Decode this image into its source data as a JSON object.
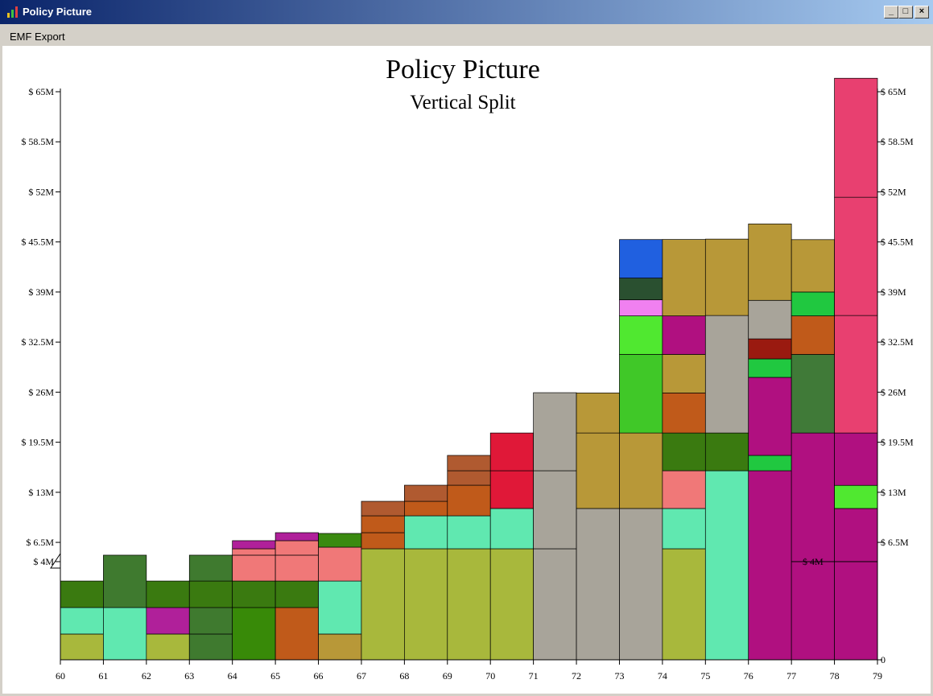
{
  "window": {
    "title": "Policy Picture"
  },
  "menu": [
    "EMF Export"
  ],
  "chart_data": {
    "type": "stacked-block",
    "title": "Policy Picture",
    "subtitle": "Vertical Split",
    "annotation": "$ 4M",
    "xlim": [
      60,
      79
    ],
    "xticks": [
      60,
      61,
      62,
      63,
      64,
      65,
      66,
      67,
      68,
      69,
      70,
      71,
      72,
      73,
      74,
      75,
      76,
      77,
      78,
      79
    ],
    "ylim": [
      0,
      65
    ],
    "y_split": 4,
    "yticks": [
      {
        "value": 65,
        "label": "$ 65M"
      },
      {
        "value": 58.5,
        "label": "$ 58.5M"
      },
      {
        "value": 52,
        "label": "$ 52M"
      },
      {
        "value": 45.5,
        "label": "$ 45.5M"
      },
      {
        "value": 39,
        "label": "$ 39M"
      },
      {
        "value": 32.5,
        "label": "$ 32.5M"
      },
      {
        "value": 26,
        "label": "$ 26M"
      },
      {
        "value": 19.5,
        "label": "$ 19.5M"
      },
      {
        "value": 13,
        "label": "$ 13M"
      },
      {
        "value": 6.5,
        "label": "$ 6.5M"
      },
      {
        "value": 4,
        "label": "$ 4M"
      }
    ],
    "y2lim": [
      0,
      65
    ],
    "y2ticks": [
      {
        "value": 65,
        "label": "$ 65M"
      },
      {
        "value": 58.5,
        "label": "$ 58.5M"
      },
      {
        "value": 52,
        "label": "$ 52M"
      },
      {
        "value": 45.5,
        "label": "$ 45.5M"
      },
      {
        "value": 39,
        "label": "$ 39M"
      },
      {
        "value": 32.5,
        "label": "$ 32.5M"
      },
      {
        "value": 26,
        "label": "$ 26M"
      },
      {
        "value": 19.5,
        "label": "$ 19.5M"
      },
      {
        "value": 13,
        "label": "$ 13M"
      },
      {
        "value": 6.5,
        "label": "$ 6.5M"
      },
      0
    ],
    "columns": [
      {
        "x": 60,
        "segments": [
          {
            "value": 1.05,
            "color": "#a8b83c"
          },
          {
            "value": 1.08,
            "color": "#60e8b0"
          },
          {
            "value": 1.08,
            "color": "#3a7a10"
          }
        ]
      },
      {
        "x": 61,
        "segments": [
          {
            "value": 2.13,
            "color": "#60e8b0"
          },
          {
            "value": 2.71,
            "color": "#3f7a2f"
          }
        ]
      },
      {
        "x": 62,
        "segments": [
          {
            "value": 1.05,
            "color": "#a8b83c"
          },
          {
            "value": 1.08,
            "color": "#b0209a"
          },
          {
            "value": 1.08,
            "color": "#3a7a10"
          }
        ]
      },
      {
        "x": 63,
        "segments": [
          {
            "value": 1.05,
            "color": "#3f7a2f"
          },
          {
            "value": 1.08,
            "color": "#3f7a2f"
          },
          {
            "value": 1.08,
            "color": "#3a7a10"
          },
          {
            "value": 1.63,
            "color": "#3f7a2f"
          }
        ]
      },
      {
        "x": 64,
        "segments": [
          {
            "value": 2.13,
            "color": "#388a08"
          },
          {
            "value": 1.08,
            "color": "#3a7a10"
          },
          {
            "value": 1.63,
            "color": "#f07878"
          },
          {
            "value": 0.83,
            "color": "#f07878"
          },
          {
            "value": 1.05,
            "color": "#b0209a"
          }
        ]
      },
      {
        "x": 65,
        "segments": [
          {
            "value": 2.13,
            "color": "#c05a1a"
          },
          {
            "value": 1.08,
            "color": "#3a7a10"
          },
          {
            "value": 1.63,
            "color": "#f07878"
          },
          {
            "value": 1.88,
            "color": "#f07878"
          },
          {
            "value": 1.04,
            "color": "#b0209a"
          }
        ]
      },
      {
        "x": 66,
        "segments": [
          {
            "value": 1.05,
            "color": "#b89838"
          },
          {
            "value": 2.16,
            "color": "#60e8b0"
          },
          {
            "value": 2.67,
            "color": "#f07878"
          },
          {
            "value": 1.78,
            "color": "#3a8a10"
          }
        ]
      },
      {
        "x": 67,
        "segments": [
          {
            "value": 5.67,
            "color": "#a8b83c"
          },
          {
            "value": 2.09,
            "color": "#c05a1a"
          },
          {
            "value": 2.19,
            "color": "#c05a1a"
          },
          {
            "value": 1.88,
            "color": "#b05a30"
          }
        ]
      },
      {
        "x": 68,
        "segments": [
          {
            "value": 5.67,
            "color": "#a8b83c"
          },
          {
            "value": 4.28,
            "color": "#60e8b0"
          },
          {
            "value": 1.88,
            "color": "#c05a1a"
          },
          {
            "value": 2.09,
            "color": "#b05a30"
          }
        ]
      },
      {
        "x": 69,
        "segments": [
          {
            "value": 5.67,
            "color": "#a8b83c"
          },
          {
            "value": 4.28,
            "color": "#60e8b0"
          },
          {
            "value": 3.97,
            "color": "#c05a1a"
          },
          {
            "value": 1.88,
            "color": "#b05a30"
          },
          {
            "value": 1.99,
            "color": "#b05a30"
          }
        ]
      },
      {
        "x": 70,
        "segments": [
          {
            "value": 5.67,
            "color": "#a8b83c"
          },
          {
            "value": 5.23,
            "color": "#60e8b0"
          },
          {
            "value": 4.9,
            "color": "#e01838"
          },
          {
            "value": 4.9,
            "color": "#e01838"
          }
        ]
      },
      {
        "x": 71,
        "segments": [
          {
            "value": 5.67,
            "color": "#a8a49a"
          },
          {
            "value": 10.13,
            "color": "#a8a49a"
          },
          {
            "value": 10.13,
            "color": "#a8a49a"
          }
        ]
      },
      {
        "x": 72,
        "segments": [
          {
            "value": 10.9,
            "color": "#a8a49a"
          },
          {
            "value": 9.8,
            "color": "#b89838"
          },
          {
            "value": 5.2,
            "color": "#b89838"
          }
        ]
      },
      {
        "x": 73,
        "segments": [
          {
            "value": 10.9,
            "color": "#a8a49a"
          },
          {
            "value": 9.8,
            "color": "#b89838"
          },
          {
            "value": 10.2,
            "color": "#40c828"
          },
          {
            "value": 5.0,
            "color": "#50e830"
          },
          {
            "value": 2.09,
            "color": "#f080f0"
          },
          {
            "value": 2.82,
            "color": "#2a5030"
          },
          {
            "value": 5.0,
            "color": "#2060e0"
          }
        ]
      },
      {
        "x": 74,
        "segments": [
          {
            "value": 5.67,
            "color": "#a8b83c"
          },
          {
            "value": 5.23,
            "color": "#60e8b0"
          },
          {
            "value": 4.9,
            "color": "#f07878"
          },
          {
            "value": 4.9,
            "color": "#3a7a10"
          },
          {
            "value": 5.2,
            "color": "#c05a1a"
          },
          {
            "value": 5.0,
            "color": "#b89838"
          },
          {
            "value": 5.0,
            "color": "#b01080"
          },
          {
            "value": 9.92,
            "color": "#b89838"
          }
        ]
      },
      {
        "x": 75,
        "segments": [
          {
            "value": 15.8,
            "color": "#60e8b0"
          },
          {
            "value": 4.9,
            "color": "#3a7a10"
          },
          {
            "value": 15.25,
            "color": "#a8a49a"
          },
          {
            "value": 9.92,
            "color": "#b89838"
          }
        ]
      },
      {
        "x": 76,
        "segments": [
          {
            "value": 15.8,
            "color": "#b01080"
          },
          {
            "value": 1.99,
            "color": "#20c840"
          },
          {
            "value": 10.13,
            "color": "#b01080"
          },
          {
            "value": 2.4,
            "color": "#20c840"
          },
          {
            "value": 2.6,
            "color": "#9a1a10"
          },
          {
            "value": 5.0,
            "color": "#a8a49a"
          },
          {
            "value": 9.92,
            "color": "#b89838"
          }
        ]
      },
      {
        "x": 77,
        "segments": [
          {
            "value": 20.7,
            "color": "#b01080"
          },
          {
            "value": 10.2,
            "color": "#407a38"
          },
          {
            "value": 5.0,
            "color": "#c05a1a"
          },
          {
            "value": 3.1,
            "color": "#20c840"
          },
          {
            "value": 6.8,
            "color": "#b89838"
          }
        ]
      },
      {
        "x": 78,
        "segments": [
          {
            "value": 10.9,
            "color": "#b01080"
          },
          {
            "value": 3.0,
            "color": "#50e830"
          },
          {
            "value": 6.8,
            "color": "#b01080"
          },
          {
            "value": 15.25,
            "color": "#e84070"
          },
          {
            "value": 15.35,
            "color": "#e84070"
          },
          {
            "value": 15.45,
            "color": "#e84070"
          }
        ]
      }
    ]
  }
}
